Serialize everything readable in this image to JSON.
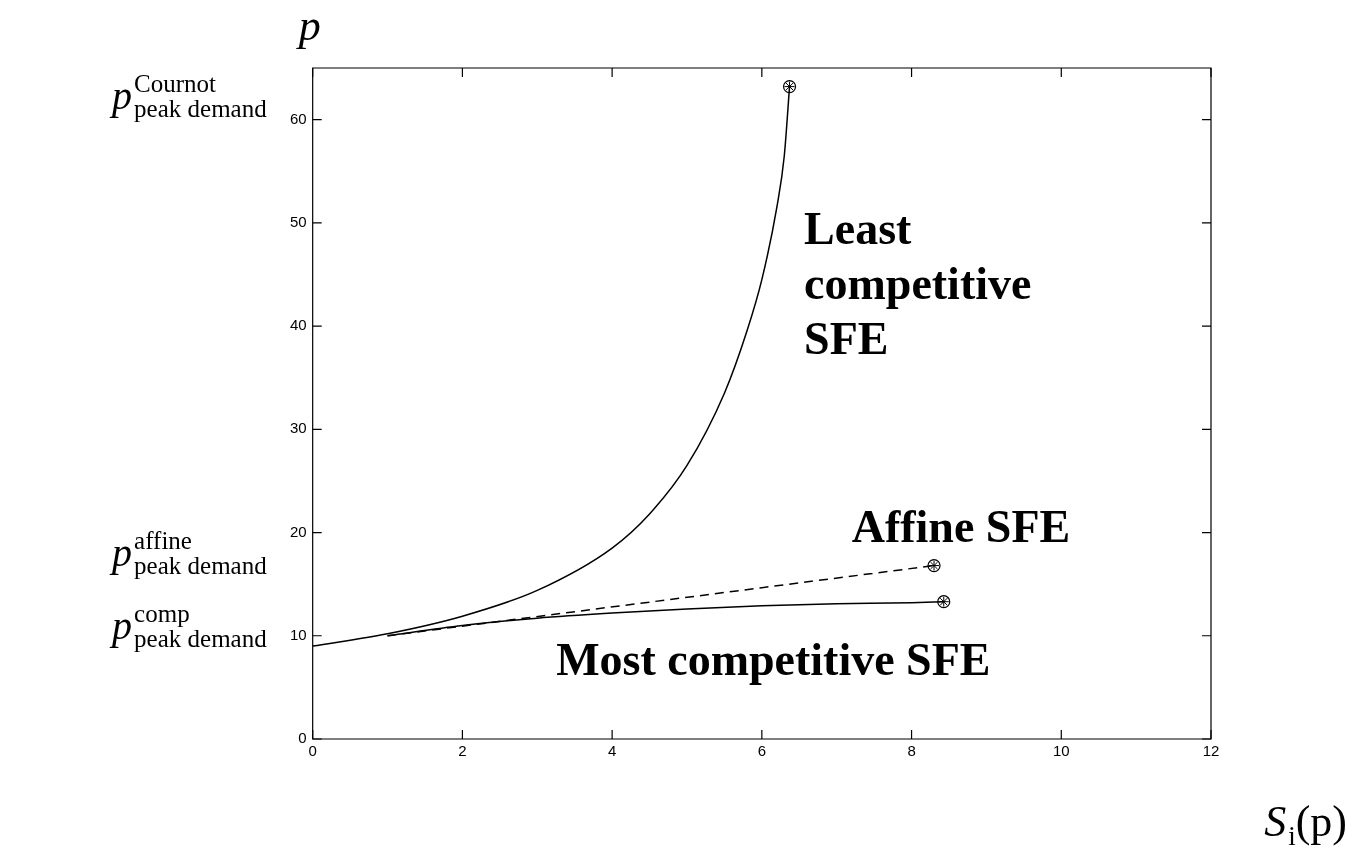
{
  "chart_data": {
    "type": "line",
    "xlabel": "S$_{i}$(p)",
    "ylabel": "p",
    "xlim": [
      0,
      12
    ],
    "xticks": [
      0,
      2,
      4,
      6,
      8,
      10,
      12
    ],
    "ylim": [
      0,
      65
    ],
    "yticks": [
      0,
      10,
      20,
      30,
      40,
      50,
      60
    ],
    "grid": false,
    "legend": false,
    "series": [
      {
        "color": "#000000",
        "line_style": "solid",
        "x": [
          0,
          1,
          2,
          3,
          4,
          4.5,
          5,
          5.5,
          5.8,
          6,
          6.2,
          6.3,
          6.37
        ],
        "values": [
          9,
          10.2,
          11.9,
          14.4,
          18.5,
          21.8,
          26.5,
          33.5,
          39.5,
          44.5,
          51.5,
          56.5,
          63.2
        ]
      },
      {
        "color": "#000000",
        "line_style": "dashed",
        "x": [
          1,
          8.3
        ],
        "values": [
          10,
          16.8
        ]
      },
      {
        "color": "#000000",
        "line_style": "solid",
        "x": [
          1,
          2,
          3,
          4,
          5,
          6,
          7,
          8,
          8.43
        ],
        "values": [
          10,
          11,
          11.7,
          12.2,
          12.6,
          12.9,
          13.1,
          13.2,
          13.3
        ]
      },
      {
        "type": "scatter",
        "marker": "cross",
        "color": "#000000",
        "x": [
          6.37,
          8.3,
          8.43
        ],
        "values": [
          63.2,
          16.8,
          13.3
        ]
      }
    ],
    "annotations": [
      "p$^{Cournot}$$_{peak demand}$",
      "p$^{affine}$$_{peak demand}$",
      "p$^{comp}$$_{peak demand}$",
      "Least\ncompetitive\nSFE",
      "Affine SFE",
      "Most competitive SFE"
    ]
  }
}
